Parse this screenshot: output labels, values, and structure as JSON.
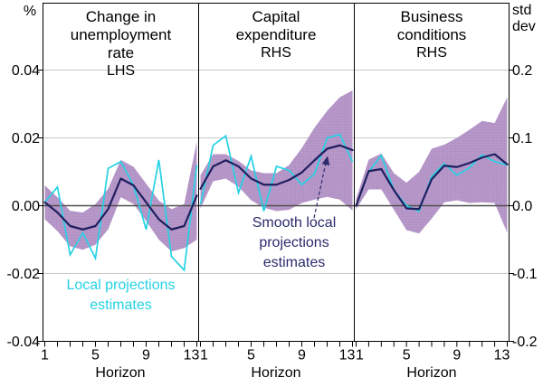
{
  "figure": {
    "left_axis_unit": "%",
    "right_axis_unit": "std\ndev",
    "left_ticks": [
      "0.04",
      "0.02",
      "0.00",
      "-0.02",
      "-0.04"
    ],
    "right_ticks": [
      "0.2",
      "0.1",
      "0.0",
      "-0.1",
      "-0.2"
    ],
    "x_label": "Horizon",
    "x_tick_labels": [
      "1",
      "5",
      "9",
      "13"
    ]
  },
  "annotations": {
    "local_projections": "Local projections\nestimates",
    "smooth_local": "Smooth local\nprojections\nestimates"
  },
  "colors": {
    "band": "#b292c5",
    "band_dot": "#bfa2cf",
    "cyan": "#24d2e4",
    "navy": "#1f1f60",
    "navy_text": "#2b2b6e",
    "gridline": "#c8c8c8",
    "zero_line": "#4d4d4d",
    "border": "#000000"
  },
  "chart_data": [
    {
      "type": "line",
      "title": "Change in unemployment rate",
      "axis_label": "LHS",
      "unit": "%",
      "xlabel": "Horizon",
      "x": [
        1,
        2,
        3,
        4,
        5,
        6,
        7,
        8,
        9,
        10,
        11,
        12,
        13
      ],
      "ylim": [
        -0.04,
        0.06
      ],
      "grid": true,
      "series": [
        {
          "name": "Local projections estimates",
          "color_key": "cyan",
          "values": [
            0.001,
            0.0055,
            -0.0145,
            -0.008,
            -0.0155,
            0.011,
            0.013,
            0.006,
            -0.007,
            0.0135,
            -0.015,
            -0.019,
            0.012
          ]
        },
        {
          "name": "Smooth local projections estimates",
          "color_key": "navy",
          "values": [
            0.001,
            -0.002,
            -0.006,
            -0.007,
            -0.006,
            -0.001,
            0.008,
            0.006,
            0.001,
            -0.004,
            -0.007,
            -0.006,
            0.003
          ]
        },
        {
          "name": "Confidence band upper",
          "color_key": "band",
          "values": [
            0.006,
            0.0025,
            -0.0015,
            -0.002,
            0.0005,
            0.005,
            0.0135,
            0.0115,
            0.0065,
            0.0015,
            -0.001,
            0.0005,
            0.019
          ]
        },
        {
          "name": "Confidence band lower",
          "color_key": "band",
          "values": [
            -0.004,
            -0.0075,
            -0.012,
            -0.013,
            -0.0115,
            -0.007,
            0.0025,
            0.0005,
            -0.0045,
            -0.01,
            -0.0135,
            -0.0125,
            -0.01
          ]
        }
      ]
    },
    {
      "type": "line",
      "title": "Capital expenditure",
      "axis_label": "RHS",
      "unit": "std dev",
      "xlabel": "Horizon",
      "x": [
        1,
        2,
        3,
        4,
        5,
        6,
        7,
        8,
        9,
        10,
        11,
        12,
        13
      ],
      "ylim": [
        -0.2,
        0.3
      ],
      "grid": true,
      "series": [
        {
          "name": "Local projections estimates",
          "color_key": "cyan",
          "values": [
            0.002,
            0.089,
            0.103,
            0.019,
            0.073,
            -0.008,
            0.058,
            0.052,
            0.031,
            0.047,
            0.1,
            0.105,
            0.065
          ]
        },
        {
          "name": "Smooth local projections estimates",
          "color_key": "navy",
          "values": [
            0.025,
            0.058,
            0.067,
            0.058,
            0.04,
            0.031,
            0.031,
            0.038,
            0.049,
            0.067,
            0.084,
            0.089,
            0.082
          ]
        },
        {
          "name": "Confidence band upper",
          "color_key": "band",
          "values": [
            0.045,
            0.076,
            0.076,
            0.066,
            0.052,
            0.048,
            0.048,
            0.06,
            0.085,
            0.115,
            0.14,
            0.16,
            0.17
          ]
        },
        {
          "name": "Confidence band lower",
          "color_key": "band",
          "values": [
            -0.004,
            0.036,
            0.04,
            0.028,
            0.008,
            -0.003,
            -0.008,
            -0.006,
            0.004,
            0.009,
            0.013,
            0.009,
            -0.007
          ]
        }
      ]
    },
    {
      "type": "line",
      "title": "Business conditions",
      "axis_label": "RHS",
      "unit": "std dev",
      "xlabel": "Horizon",
      "x": [
        1,
        2,
        3,
        4,
        5,
        6,
        7,
        8,
        9,
        10,
        11,
        12,
        13
      ],
      "ylim": [
        -0.2,
        0.3
      ],
      "grid": true,
      "series": [
        {
          "name": "Local projections estimates",
          "color_key": "cyan",
          "values": [
            0.0,
            0.05,
            0.074,
            0.023,
            0.0,
            -0.008,
            0.043,
            0.062,
            0.045,
            0.056,
            0.075,
            0.065,
            0.06
          ]
        },
        {
          "name": "Smooth local projections estimates",
          "color_key": "navy",
          "values": [
            0.0,
            0.051,
            0.054,
            0.023,
            -0.004,
            -0.005,
            0.039,
            0.059,
            0.057,
            0.063,
            0.071,
            0.076,
            0.061
          ]
        },
        {
          "name": "Confidence band upper",
          "color_key": "band",
          "values": [
            0.01,
            0.068,
            0.077,
            0.048,
            0.034,
            0.05,
            0.084,
            0.09,
            0.1,
            0.112,
            0.125,
            0.122,
            0.16
          ]
        },
        {
          "name": "Confidence band lower",
          "color_key": "band",
          "values": [
            -0.005,
            0.024,
            0.024,
            -0.006,
            -0.036,
            -0.041,
            -0.019,
            0.005,
            0.008,
            0.004,
            0.005,
            0.004,
            -0.04
          ]
        }
      ]
    }
  ]
}
